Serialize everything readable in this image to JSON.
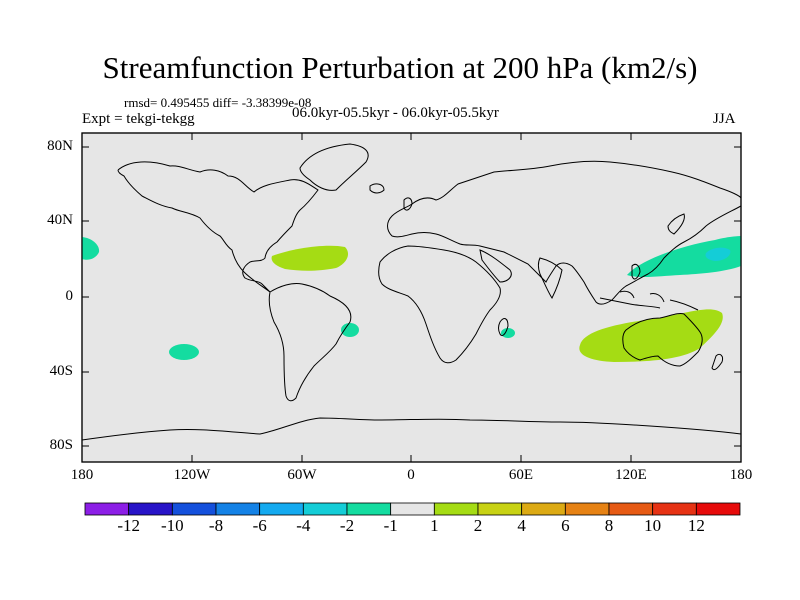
{
  "title": "Streamfunction Perturbation at 200 hPa (km2/s)",
  "stats": {
    "rmsd_label": "rmsd= 0.495455 diff= -3.38399e-08"
  },
  "expt": "Expt = tekgi-tekgg",
  "period": "06.0kyr-05.5kyr - 06.0kyr-05.5kyr",
  "season": "JJA",
  "map": {
    "background_color": "#e6e6e6",
    "lat_labels": [
      "80N",
      "40N",
      "0",
      "40S",
      "80S"
    ],
    "lon_labels": [
      "180",
      "120W",
      "60W",
      "0",
      "60E",
      "120E",
      "180"
    ]
  },
  "colorbar": {
    "colors": [
      "#8c1ee6",
      "#2814c8",
      "#1450dc",
      "#1482e6",
      "#14aaf0",
      "#14cdd7",
      "#14dca0",
      "#e6e6e6",
      "#a5dc14",
      "#c8d214",
      "#dcaa14",
      "#e68214",
      "#e65a14",
      "#e63214",
      "#e60a0a"
    ],
    "labels": [
      "-12",
      "-10",
      "-8",
      "-6",
      "-4",
      "-2",
      "-1",
      "1",
      "2",
      "4",
      "6",
      "8",
      "10",
      "12"
    ]
  },
  "anomalies": [
    {
      "name": "caribbean-positive",
      "color": "#a5dc14"
    },
    {
      "name": "australia-positive",
      "color": "#a5dc14"
    },
    {
      "name": "west-pacific-negative",
      "color": "#14dca0"
    },
    {
      "name": "west-pacific-core",
      "color": "#14cdd7"
    },
    {
      "name": "east-pacific-negative",
      "color": "#14dca0"
    },
    {
      "name": "south-pacific-negative",
      "color": "#14dca0"
    },
    {
      "name": "south-atlantic-negative",
      "color": "#14dca0"
    },
    {
      "name": "madagascar-negative",
      "color": "#14dca0"
    }
  ]
}
